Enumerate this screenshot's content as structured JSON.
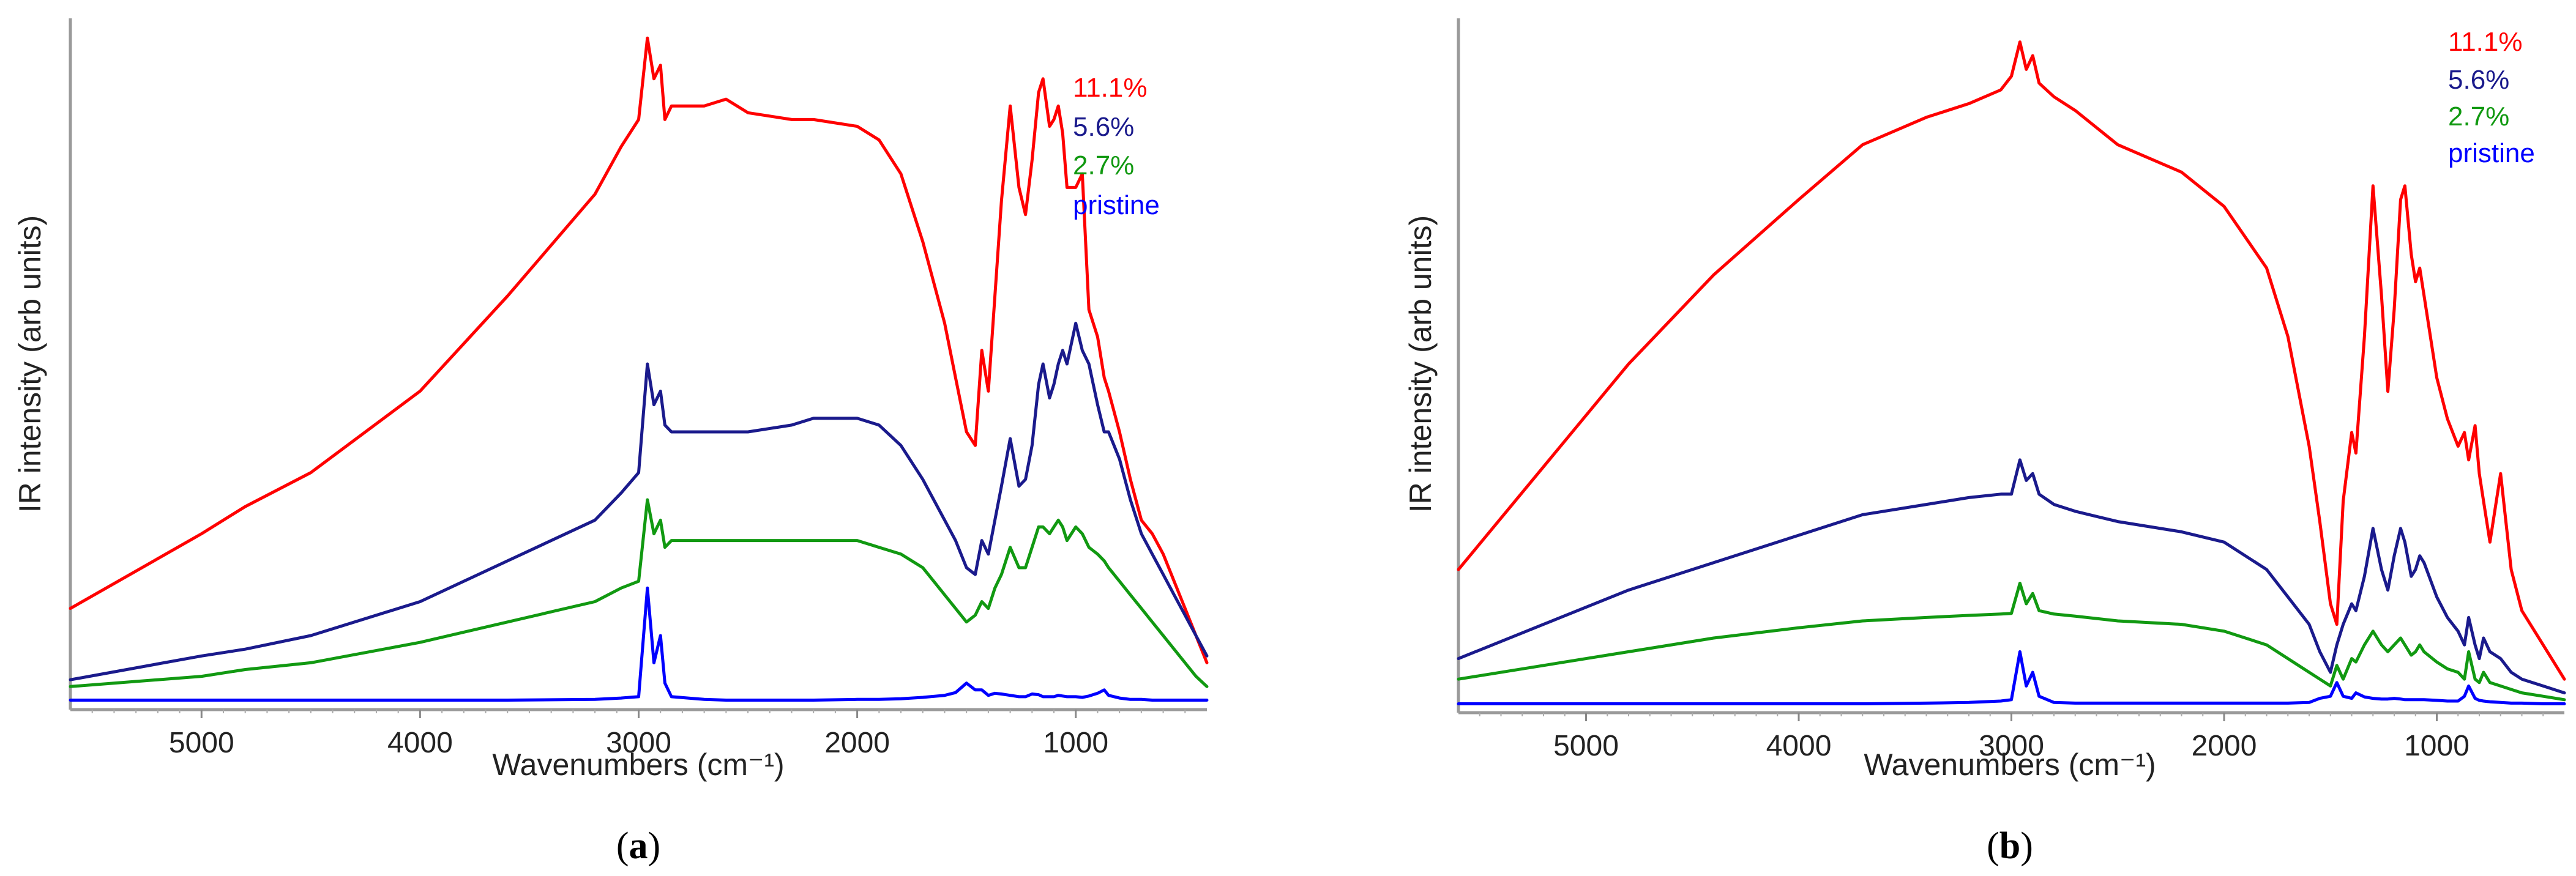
{
  "colors": {
    "s11": "#ff0000",
    "s56": "#1a1a8c",
    "s27": "#119911",
    "pristine": "#0000ff",
    "axis": "#888888",
    "text": "#222222"
  },
  "chart_data": [
    {
      "type": "line",
      "panel_label": "a",
      "xlabel": "Wavenumbers (cm⁻¹)",
      "ylabel": "IR intensity (arb units)",
      "xlim": [
        5600,
        400
      ],
      "ylim": [
        0,
        100
      ],
      "xticks": [
        5000,
        4000,
        3000,
        2000,
        1000
      ],
      "x": [
        5600,
        5000,
        4800,
        4500,
        4000,
        3600,
        3200,
        3080,
        3000,
        2960,
        2930,
        2900,
        2880,
        2850,
        2700,
        2600,
        2500,
        2300,
        2200,
        2000,
        1900,
        1800,
        1700,
        1600,
        1550,
        1500,
        1460,
        1430,
        1400,
        1370,
        1340,
        1300,
        1260,
        1230,
        1200,
        1170,
        1150,
        1120,
        1100,
        1080,
        1060,
        1040,
        1000,
        970,
        940,
        900,
        870,
        850,
        800,
        750,
        700,
        650,
        600,
        550,
        500,
        450,
        400
      ],
      "series": [
        {
          "name": "11.1%",
          "color_key": "s11",
          "values": [
            14,
            25,
            29,
            34,
            46,
            60,
            75,
            82,
            86,
            98,
            92,
            94,
            86,
            88,
            88,
            89,
            87,
            86,
            86,
            85,
            83,
            78,
            68,
            56,
            48,
            40,
            38,
            52,
            46,
            60,
            74,
            88,
            76,
            72,
            80,
            90,
            92,
            85,
            86,
            88,
            84,
            76,
            76,
            78,
            58,
            54,
            48,
            46,
            40,
            33,
            27,
            25,
            22,
            18,
            14,
            10,
            6
          ]
        },
        {
          "name": "5.6%",
          "color_key": "s56",
          "values": [
            3.5,
            7,
            8,
            10,
            15,
            21,
            27,
            31,
            34,
            50,
            44,
            46,
            41,
            40,
            40,
            40,
            40,
            41,
            42,
            42,
            41,
            38,
            33,
            27,
            24,
            20,
            19,
            24,
            22,
            27,
            32,
            39,
            32,
            33,
            38,
            47,
            50,
            45,
            47,
            50,
            52,
            50,
            56,
            52,
            50,
            44,
            40,
            40,
            36,
            30,
            25,
            22,
            19,
            16,
            13,
            10,
            7
          ]
        },
        {
          "name": "2.7%",
          "color_key": "s27",
          "values": [
            2.5,
            4,
            5,
            6,
            9,
            12,
            15,
            17,
            18,
            30,
            25,
            27,
            23,
            24,
            24,
            24,
            24,
            24,
            24,
            24,
            23,
            22,
            20,
            16,
            14,
            12,
            13,
            15,
            14,
            17,
            19,
            23,
            20,
            20,
            23,
            26,
            26,
            25,
            26,
            27,
            26,
            24,
            26,
            25,
            23,
            22,
            21,
            20,
            18,
            16,
            14,
            12,
            10,
            8,
            6,
            4,
            2.5
          ]
        },
        {
          "name": "pristine",
          "color_key": "pristine",
          "values": [
            0.5,
            0.5,
            0.5,
            0.5,
            0.5,
            0.5,
            0.6,
            0.8,
            1,
            17,
            6,
            10,
            3,
            1,
            0.6,
            0.5,
            0.5,
            0.5,
            0.5,
            0.6,
            0.6,
            0.7,
            0.9,
            1.2,
            1.6,
            3,
            2,
            2,
            1.2,
            1.5,
            1.4,
            1.2,
            1,
            1,
            1.4,
            1.3,
            1,
            1,
            1,
            1.2,
            1.1,
            1,
            1,
            0.9,
            1.1,
            1.5,
            2,
            1.2,
            0.8,
            0.6,
            0.6,
            0.5,
            0.5,
            0.5,
            0.5,
            0.5,
            0.5
          ]
        }
      ]
    },
    {
      "type": "line",
      "panel_label": "b",
      "xlabel": "Wavenumbers (cm⁻¹)",
      "ylabel": "IR intensity (arb units)",
      "xlim": [
        5600,
        400
      ],
      "ylim": [
        0,
        100
      ],
      "xticks": [
        5000,
        4000,
        3000,
        2000,
        1000
      ],
      "x": [
        5600,
        5200,
        4800,
        4400,
        4000,
        3700,
        3400,
        3200,
        3050,
        3000,
        2960,
        2930,
        2900,
        2870,
        2800,
        2700,
        2500,
        2200,
        2000,
        1800,
        1700,
        1600,
        1550,
        1500,
        1470,
        1440,
        1400,
        1380,
        1340,
        1300,
        1260,
        1230,
        1200,
        1170,
        1150,
        1120,
        1100,
        1080,
        1060,
        1000,
        950,
        900,
        870,
        850,
        820,
        800,
        780,
        750,
        700,
        650,
        600,
        500,
        400
      ],
      "series": [
        {
          "name": "11.1%",
          "color_key": "s11",
          "values": [
            20,
            35,
            50,
            63,
            74,
            82,
            86,
            88,
            90,
            92,
            97,
            93,
            95,
            91,
            89,
            87,
            82,
            78,
            73,
            64,
            54,
            38,
            27,
            15,
            12,
            30,
            40,
            37,
            54,
            76,
            60,
            46,
            58,
            74,
            76,
            66,
            62,
            64,
            60,
            48,
            42,
            38,
            40,
            36,
            41,
            34,
            30,
            24,
            34,
            20,
            14,
            9,
            4
          ]
        },
        {
          "name": "5.6%",
          "color_key": "s56",
          "values": [
            7,
            12,
            17,
            21,
            25,
            28,
            29.5,
            30.5,
            31,
            31,
            36,
            33,
            34,
            31,
            29.5,
            28.5,
            27,
            25.5,
            24,
            20,
            16,
            12,
            8,
            5,
            9,
            12,
            15,
            14,
            19,
            26,
            20,
            17,
            22,
            26,
            24,
            19,
            20,
            22,
            21,
            16,
            13,
            11,
            9,
            13,
            9,
            7,
            10,
            8,
            7,
            5,
            4,
            3,
            2
          ]
        },
        {
          "name": "2.7%",
          "color_key": "s27",
          "values": [
            4,
            6,
            8,
            10,
            11.5,
            12.5,
            13,
            13.3,
            13.5,
            13.6,
            18,
            15,
            16.5,
            14,
            13.5,
            13.2,
            12.5,
            12,
            11,
            9,
            7,
            5,
            4,
            3,
            6,
            4,
            7,
            6.5,
            9,
            11,
            9,
            8,
            9,
            10,
            9,
            7.5,
            8,
            9,
            8,
            6.5,
            5.5,
            5,
            4,
            8,
            4,
            3.5,
            5,
            3.5,
            3,
            2.5,
            2,
            1.5,
            1
          ]
        },
        {
          "name": "pristine",
          "color_key": "pristine",
          "values": [
            0.4,
            0.4,
            0.4,
            0.4,
            0.4,
            0.4,
            0.5,
            0.6,
            0.8,
            1,
            8,
            3,
            5,
            1.5,
            0.6,
            0.5,
            0.5,
            0.5,
            0.5,
            0.5,
            0.5,
            0.6,
            1.2,
            1.5,
            3.5,
            1.5,
            1.2,
            2,
            1.4,
            1.2,
            1.1,
            1.1,
            1.2,
            1.1,
            1,
            1,
            1,
            1,
            1,
            0.9,
            0.8,
            0.8,
            1.5,
            3,
            1.2,
            0.9,
            0.8,
            0.7,
            0.6,
            0.5,
            0.5,
            0.4,
            0.4
          ]
        }
      ]
    }
  ]
}
